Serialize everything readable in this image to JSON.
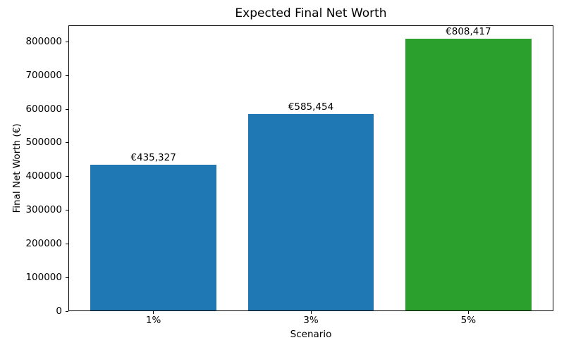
{
  "chart_data": {
    "type": "bar",
    "title": "Expected Final Net Worth",
    "xlabel": "Scenario",
    "ylabel": "Final Net Worth (€)",
    "categories": [
      "1%",
      "3%",
      "5%"
    ],
    "values": [
      435327,
      585454,
      808417
    ],
    "bar_labels": [
      "€435,327",
      "€585,454",
      "€808,417"
    ],
    "bar_colors": [
      "#1f77b4",
      "#1f77b4",
      "#2ca02c"
    ],
    "default_bar_color": "#1f77b4",
    "highlight_bar_color": "#2ca02c",
    "axis_color": "#000000",
    "background_color": "#ffffff",
    "ylim": [
      0,
      848838
    ],
    "yticks": [
      0,
      100000,
      200000,
      300000,
      400000,
      500000,
      600000,
      700000,
      800000
    ],
    "ytick_labels": [
      "0",
      "100000",
      "200000",
      "300000",
      "400000",
      "500000",
      "600000",
      "700000",
      "800000"
    ],
    "bar_width_fraction": 0.8,
    "grid": false,
    "legend": false
  }
}
